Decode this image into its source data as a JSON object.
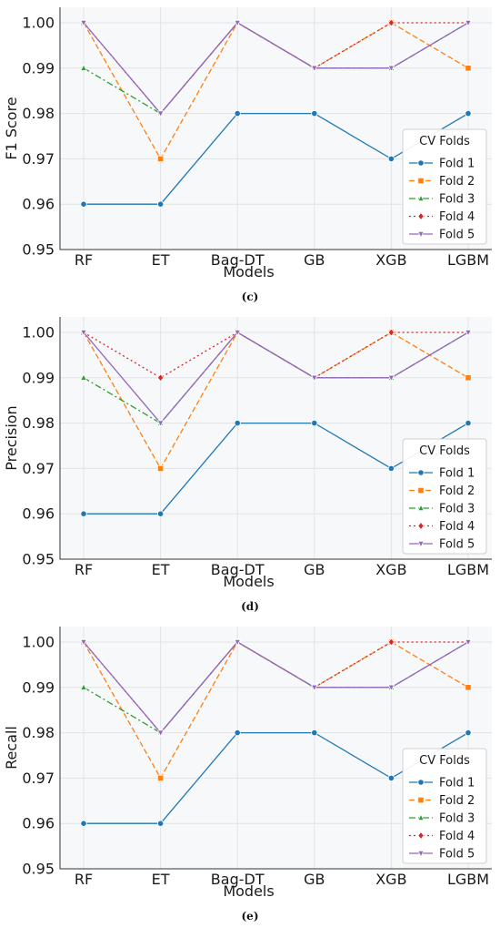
{
  "chart_data": [
    {
      "type": "line",
      "caption": "(c)",
      "xlabel": "Models",
      "ylabel": "F1 Score",
      "categories": [
        "RF",
        "ET",
        "Bag-DT",
        "GB",
        "XGB",
        "LGBM"
      ],
      "ylim": [
        0.95,
        1.0
      ],
      "yticks": [
        "0.95",
        "0.96",
        "0.97",
        "0.98",
        "0.99",
        "1.00"
      ],
      "grid": true,
      "legend_title": "CV Folds",
      "legend_position": "lower-right",
      "series": [
        {
          "name": "Fold 1",
          "values": [
            0.96,
            0.96,
            0.98,
            0.98,
            0.97,
            0.98
          ]
        },
        {
          "name": "Fold 2",
          "values": [
            1.0,
            0.97,
            1.0,
            0.99,
            1.0,
            0.99
          ]
        },
        {
          "name": "Fold 3",
          "values": [
            0.99,
            0.98,
            1.0,
            0.99,
            0.99,
            1.0
          ]
        },
        {
          "name": "Fold 4",
          "values": [
            1.0,
            0.98,
            1.0,
            0.99,
            1.0,
            1.0
          ]
        },
        {
          "name": "Fold 5",
          "values": [
            1.0,
            0.98,
            1.0,
            0.99,
            0.99,
            1.0
          ]
        }
      ]
    },
    {
      "type": "line",
      "caption": "(d)",
      "xlabel": "Models",
      "ylabel": "Precision",
      "categories": [
        "RF",
        "ET",
        "Bag-DT",
        "GB",
        "XGB",
        "LGBM"
      ],
      "ylim": [
        0.95,
        1.0
      ],
      "yticks": [
        "0.95",
        "0.96",
        "0.97",
        "0.98",
        "0.99",
        "1.00"
      ],
      "grid": true,
      "legend_title": "CV Folds",
      "legend_position": "lower-right",
      "series": [
        {
          "name": "Fold 1",
          "values": [
            0.96,
            0.96,
            0.98,
            0.98,
            0.97,
            0.98
          ]
        },
        {
          "name": "Fold 2",
          "values": [
            1.0,
            0.97,
            1.0,
            0.99,
            1.0,
            0.99
          ]
        },
        {
          "name": "Fold 3",
          "values": [
            0.99,
            0.98,
            1.0,
            0.99,
            0.99,
            1.0
          ]
        },
        {
          "name": "Fold 4",
          "values": [
            1.0,
            0.99,
            1.0,
            0.99,
            1.0,
            1.0
          ]
        },
        {
          "name": "Fold 5",
          "values": [
            1.0,
            0.98,
            1.0,
            0.99,
            0.99,
            1.0
          ]
        }
      ]
    },
    {
      "type": "line",
      "caption": "(e)",
      "xlabel": "Models",
      "ylabel": "Recall",
      "categories": [
        "RF",
        "ET",
        "Bag-DT",
        "GB",
        "XGB",
        "LGBM"
      ],
      "ylim": [
        0.95,
        1.0
      ],
      "yticks": [
        "0.95",
        "0.96",
        "0.97",
        "0.98",
        "0.99",
        "1.00"
      ],
      "grid": true,
      "legend_title": "CV Folds",
      "legend_position": "lower-right",
      "series": [
        {
          "name": "Fold 1",
          "values": [
            0.96,
            0.96,
            0.98,
            0.98,
            0.97,
            0.98
          ]
        },
        {
          "name": "Fold 2",
          "values": [
            1.0,
            0.97,
            1.0,
            0.99,
            1.0,
            0.99
          ]
        },
        {
          "name": "Fold 3",
          "values": [
            0.99,
            0.98,
            1.0,
            0.99,
            0.99,
            1.0
          ]
        },
        {
          "name": "Fold 4",
          "values": [
            1.0,
            0.98,
            1.0,
            0.99,
            1.0,
            1.0
          ]
        },
        {
          "name": "Fold 5",
          "values": [
            1.0,
            0.98,
            1.0,
            0.99,
            0.99,
            1.0
          ]
        }
      ]
    }
  ],
  "series_styles": [
    {
      "color": "#1f77b4",
      "dash": "none",
      "marker": "circle"
    },
    {
      "color": "#ff7f0e",
      "dash": "dashed",
      "marker": "square"
    },
    {
      "color": "#2ca02c",
      "dash": "dashdot",
      "marker": "triangle-up"
    },
    {
      "color": "#d62728",
      "dash": "dotted",
      "marker": "diamond"
    },
    {
      "color": "#9467bd",
      "dash": "none",
      "marker": "triangle-down"
    }
  ]
}
